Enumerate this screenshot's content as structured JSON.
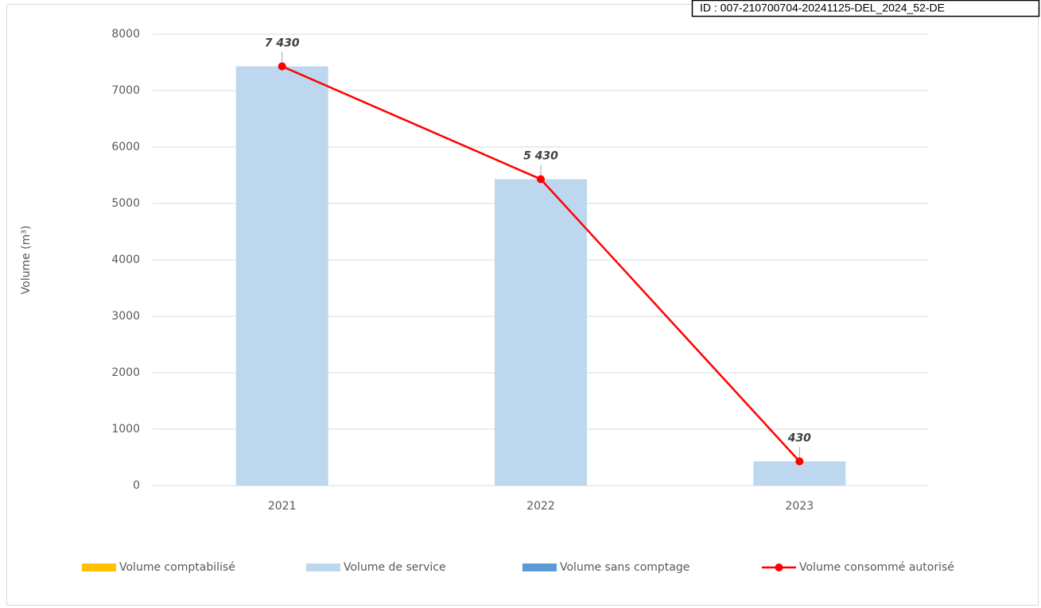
{
  "chart_data": {
    "type": "bar",
    "stacked": true,
    "annotation": "ID : 007-210700704-20241125-DEL_2024_52-DE",
    "y_label": "Volume (m³)",
    "categories": [
      "2021",
      "2022",
      "2023"
    ],
    "series": [
      {
        "name": "Volume comptabilisé",
        "color": "#ffc000",
        "values": [
          0,
          0,
          0
        ]
      },
      {
        "name": "Volume de service",
        "color": "#bdd7ee",
        "values": [
          7430,
          5430,
          430
        ]
      },
      {
        "name": "Volume sans comptage",
        "color": "#5b9bd5",
        "values": [
          0,
          0,
          0
        ]
      },
      {
        "name": "Volume consommé autorisé",
        "type": "line",
        "color": "#ff0000",
        "values": [
          7430,
          5430,
          430
        ],
        "value_labels": [
          "7 430",
          "5 430",
          "430"
        ]
      }
    ],
    "ylim": [
      0,
      8000
    ],
    "yticks": [
      0,
      1000,
      2000,
      3000,
      4000,
      5000,
      6000,
      7000,
      8000
    ],
    "grid": true,
    "legend": "bottom"
  }
}
